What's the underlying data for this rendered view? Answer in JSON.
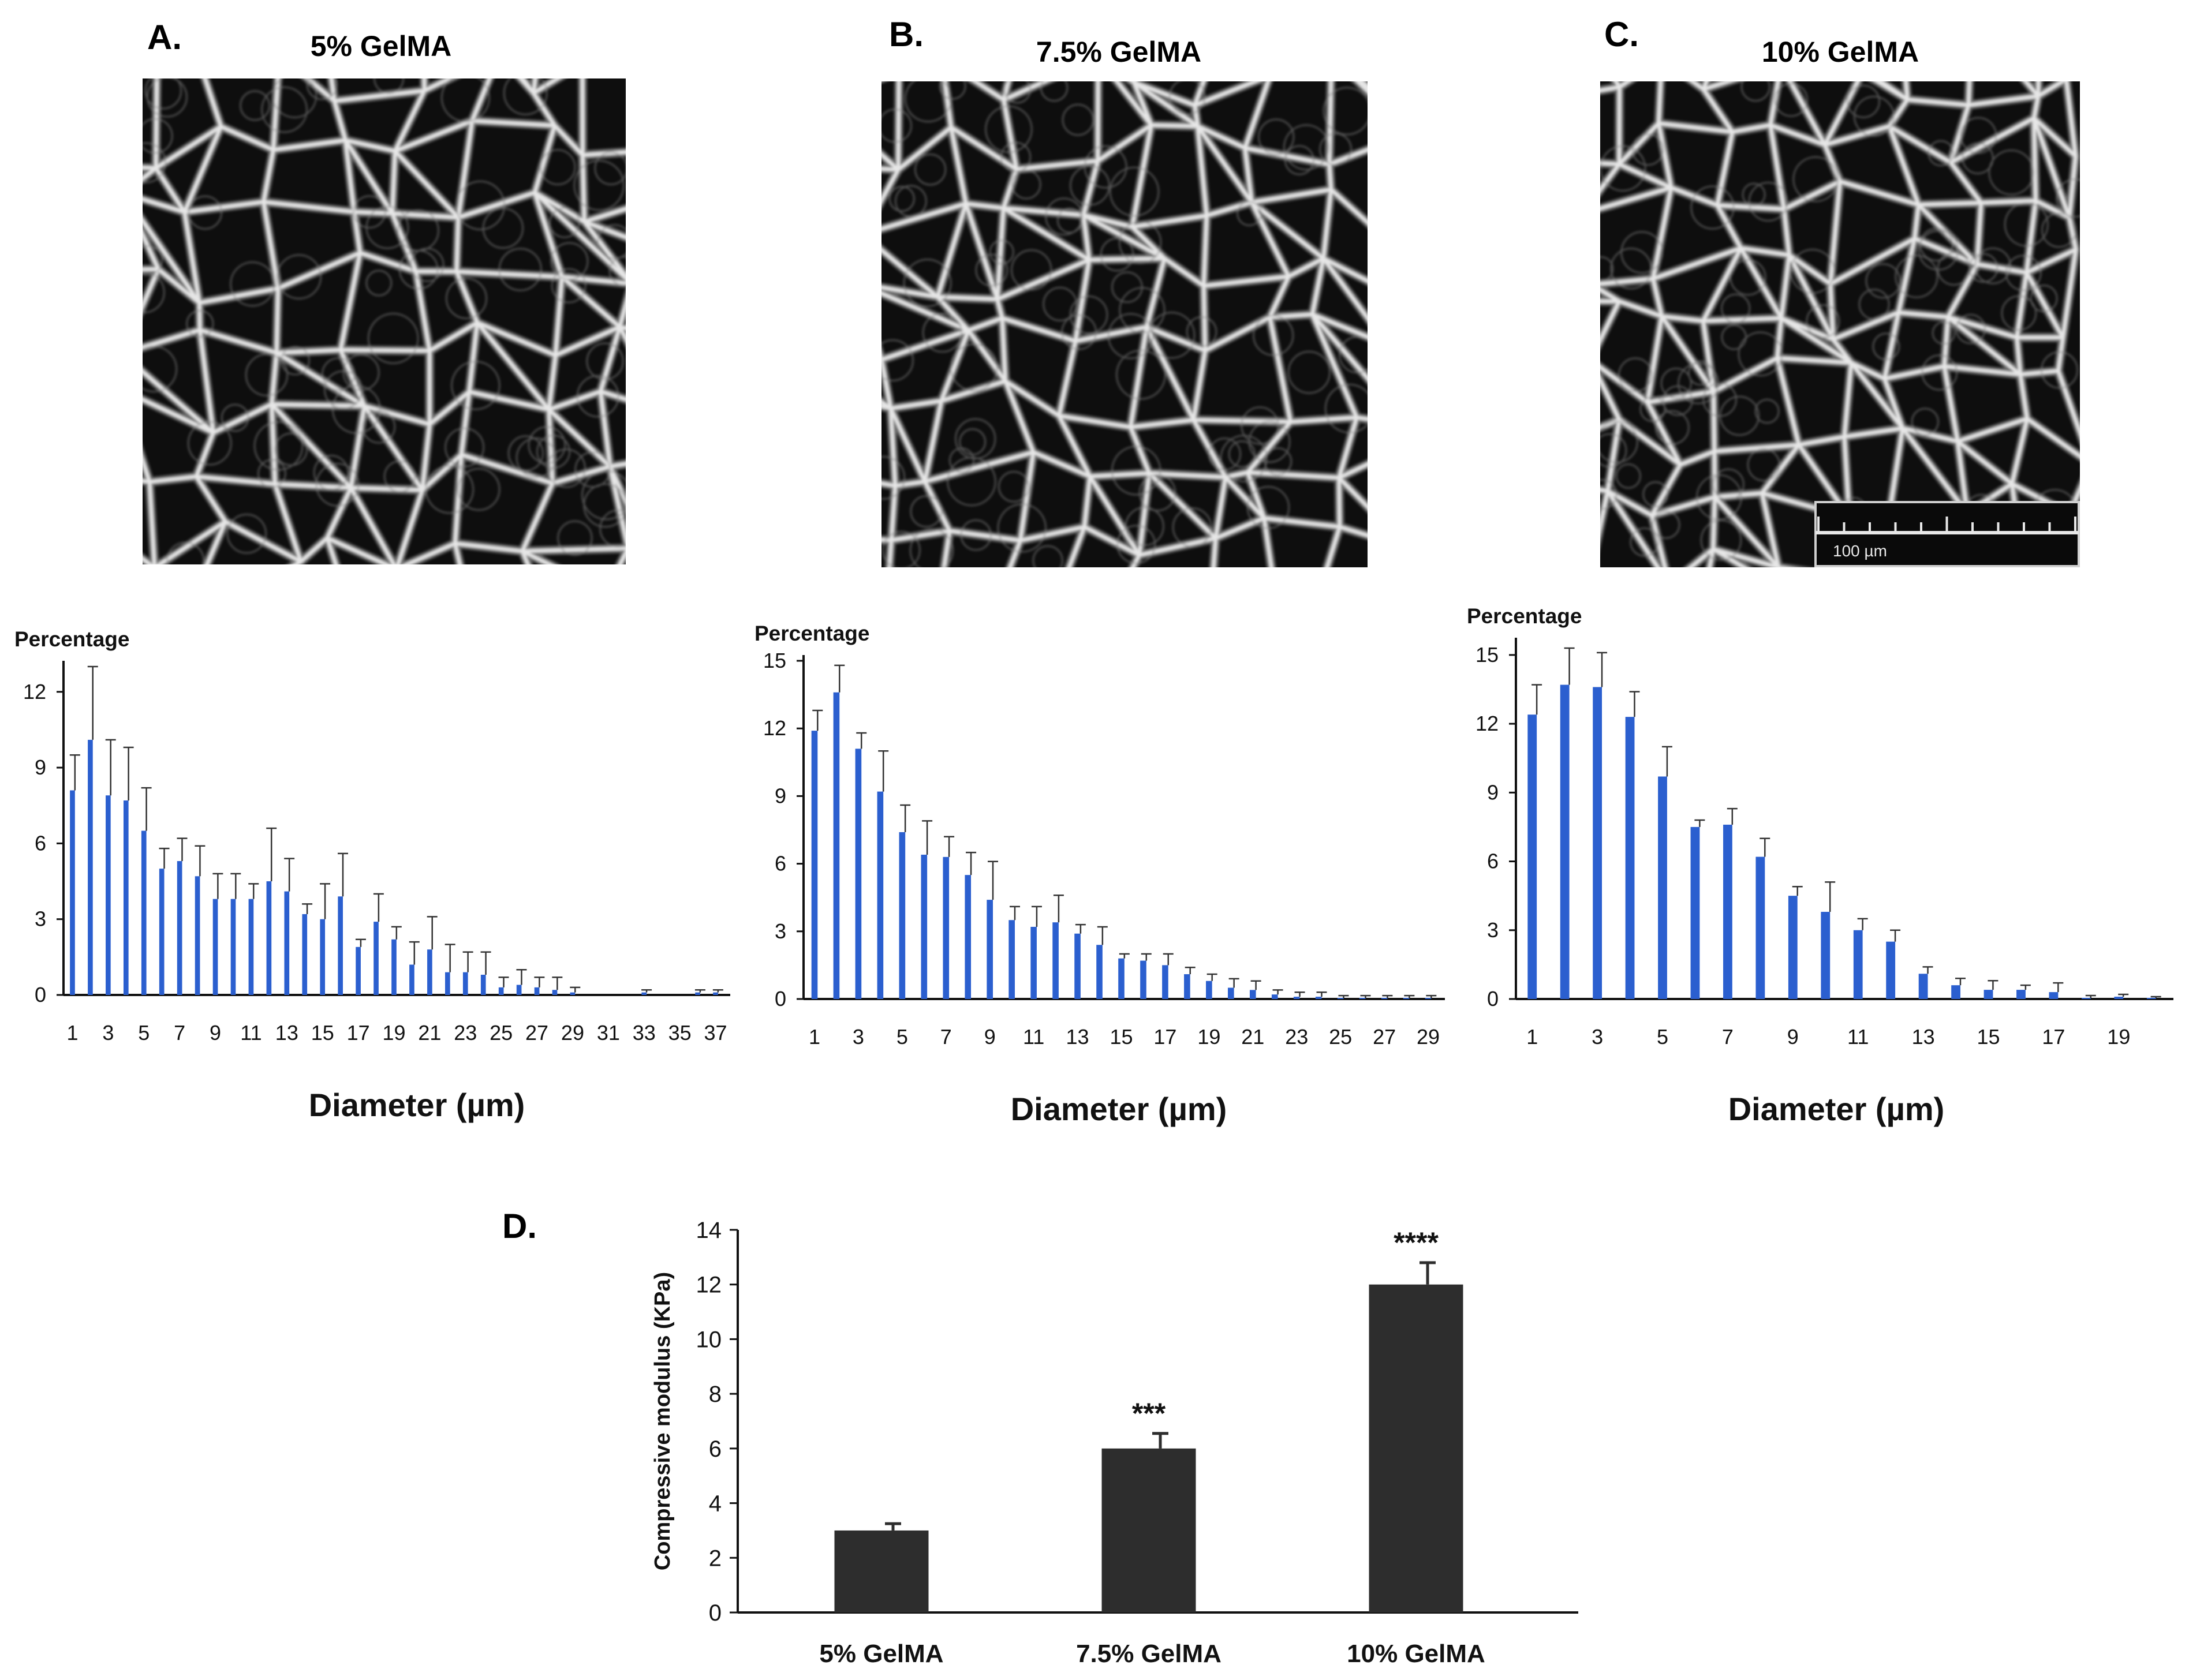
{
  "colors": {
    "bar_blue": "#2b5fcf",
    "bar_dark": "#2d2d2d",
    "axis": "#111111",
    "sem_bg": "#0e0e0e",
    "sem_wall": "#e6e6e6"
  },
  "panels": [
    {
      "letter": "A.",
      "title": "5% GelMA"
    },
    {
      "letter": "B.",
      "title": "7.5% GelMA"
    },
    {
      "letter": "C.",
      "title": "10% GelMA",
      "scale_label": "100 µm"
    }
  ],
  "panel_d": {
    "letter": "D."
  },
  "chart_data": [
    {
      "type": "bar",
      "title": "5% GelMA",
      "ylabel": "Percentage",
      "xlabel": "Diameter (µm)",
      "ylim": [
        0,
        13
      ],
      "yticks": [
        0,
        3,
        6,
        9,
        12
      ],
      "x_ticklabels": [
        "1",
        "3",
        "5",
        "7",
        "9",
        "11",
        "13",
        "15",
        "17",
        "19",
        "21",
        "23",
        "25",
        "27",
        "29",
        "31",
        "33",
        "35",
        "37"
      ],
      "categories": [
        1,
        2,
        3,
        4,
        5,
        6,
        7,
        8,
        9,
        10,
        11,
        12,
        13,
        14,
        15,
        16,
        17,
        18,
        19,
        20,
        21,
        22,
        23,
        24,
        25,
        26,
        27,
        28,
        29,
        30,
        31,
        32,
        33,
        34,
        35,
        36,
        37
      ],
      "values": [
        8.1,
        10.1,
        7.9,
        7.7,
        6.5,
        5.0,
        5.3,
        4.7,
        3.8,
        3.8,
        3.8,
        4.5,
        4.1,
        3.2,
        3.0,
        3.9,
        1.9,
        2.9,
        2.2,
        1.2,
        1.8,
        0.9,
        0.9,
        0.8,
        0.3,
        0.4,
        0.3,
        0.2,
        0.1,
        0.0,
        0.0,
        0.0,
        0.1,
        0.0,
        0.0,
        0.1,
        0.1
      ],
      "errors": [
        1.4,
        2.9,
        2.2,
        2.1,
        1.7,
        0.8,
        0.9,
        1.2,
        1.0,
        1.0,
        0.6,
        2.1,
        1.3,
        0.4,
        1.4,
        1.7,
        0.3,
        1.1,
        0.5,
        0.9,
        1.3,
        1.1,
        0.8,
        0.9,
        0.4,
        0.6,
        0.4,
        0.5,
        0.2,
        0.0,
        0.0,
        0.0,
        0.1,
        0.0,
        0.0,
        0.1,
        0.1
      ]
    },
    {
      "type": "bar",
      "title": "7.5% GelMA",
      "ylabel": "Percentage",
      "xlabel": "Diameter (µm)",
      "ylim": [
        0,
        15
      ],
      "yticks": [
        0,
        3,
        6,
        9,
        12,
        15
      ],
      "x_ticklabels": [
        "1",
        "3",
        "5",
        "7",
        "9",
        "11",
        "13",
        "15",
        "17",
        "19",
        "21",
        "23",
        "25",
        "27",
        "29"
      ],
      "categories": [
        1,
        2,
        3,
        4,
        5,
        6,
        7,
        8,
        9,
        10,
        11,
        12,
        13,
        14,
        15,
        16,
        17,
        18,
        19,
        20,
        21,
        22,
        23,
        24,
        25,
        26,
        27,
        28,
        29
      ],
      "values": [
        11.9,
        13.6,
        11.1,
        9.2,
        7.4,
        6.4,
        6.3,
        5.5,
        4.4,
        3.5,
        3.2,
        3.4,
        2.9,
        2.4,
        1.8,
        1.7,
        1.5,
        1.1,
        0.8,
        0.5,
        0.4,
        0.2,
        0.1,
        0.1,
        0.05,
        0.05,
        0.05,
        0.05,
        0.05
      ],
      "errors": [
        0.9,
        1.2,
        0.7,
        1.8,
        1.2,
        1.5,
        0.9,
        1.0,
        1.7,
        0.6,
        0.9,
        1.2,
        0.4,
        0.8,
        0.2,
        0.3,
        0.5,
        0.3,
        0.3,
        0.4,
        0.4,
        0.2,
        0.2,
        0.2,
        0.1,
        0.1,
        0.1,
        0.1,
        0.1
      ]
    },
    {
      "type": "bar",
      "title": "10% GelMA",
      "ylabel": "Percentage",
      "xlabel": "Diameter (µm)",
      "ylim": [
        0,
        15.5
      ],
      "yticks": [
        0,
        3,
        6,
        9,
        12,
        15
      ],
      "x_ticklabels": [
        "1",
        "3",
        "5",
        "7",
        "9",
        "11",
        "13",
        "15",
        "17",
        "19"
      ],
      "categories": [
        1,
        2,
        3,
        4,
        5,
        6,
        7,
        8,
        9,
        10,
        11,
        12,
        13,
        14,
        15,
        16,
        17,
        18,
        19,
        20
      ],
      "values": [
        12.4,
        13.7,
        13.6,
        12.3,
        9.7,
        7.5,
        7.6,
        6.2,
        4.5,
        3.8,
        3.0,
        2.5,
        1.1,
        0.6,
        0.4,
        0.4,
        0.3,
        0.05,
        0.1,
        0.05
      ],
      "errors": [
        1.3,
        1.6,
        1.5,
        1.1,
        1.3,
        0.3,
        0.7,
        0.8,
        0.4,
        1.3,
        0.5,
        0.5,
        0.3,
        0.3,
        0.4,
        0.2,
        0.4,
        0.1,
        0.1,
        0.05
      ]
    },
    {
      "type": "bar",
      "title": "",
      "ylabel": "Compressive modulus (KPa)",
      "xlabel": "",
      "ylim": [
        0,
        14
      ],
      "yticks": [
        0,
        2,
        4,
        6,
        8,
        10,
        12,
        14
      ],
      "categories": [
        "5% GelMA",
        "7.5% GelMA",
        "10% GelMA"
      ],
      "values": [
        3.0,
        6.0,
        12.0
      ],
      "errors": [
        0.25,
        0.55,
        0.8
      ],
      "significance": [
        "",
        "***",
        "****"
      ]
    }
  ]
}
